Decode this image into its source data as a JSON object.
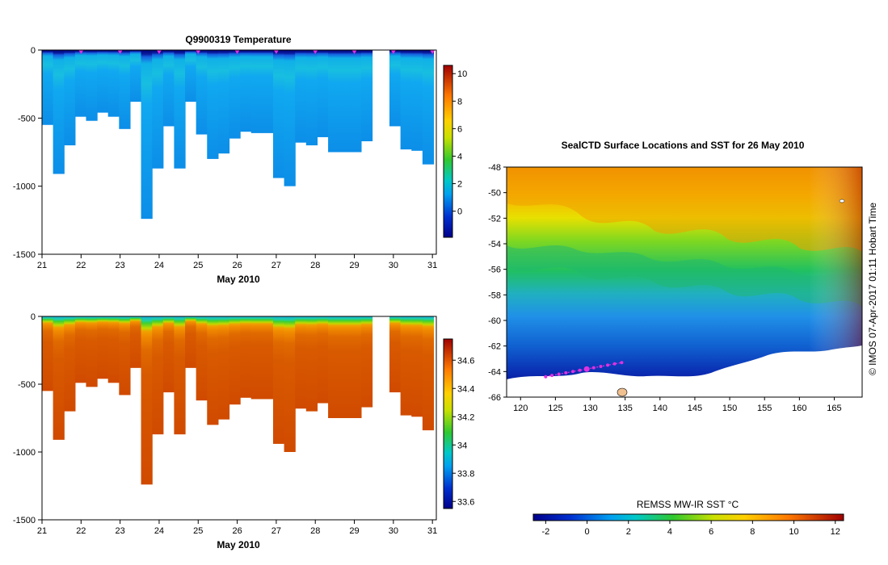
{
  "chart_data": [
    {
      "type": "heatmap",
      "title": "Q9900319  Temperature",
      "xlabel": "May 2010",
      "ylabel": "",
      "x_ticks": [
        "21",
        "22",
        "23",
        "24",
        "25",
        "26",
        "27",
        "28",
        "29",
        "30",
        "31"
      ],
      "xlim": [
        21,
        31.1
      ],
      "y_ticks": [
        "0",
        "-500",
        "-1000",
        "-1500"
      ],
      "ylim": [
        -1500,
        0
      ],
      "colorbar_ticks": [
        "10",
        "8",
        "6",
        "4",
        "2",
        "0"
      ],
      "colorbar_range": [
        -1.9,
        10.6
      ],
      "surface_profile_days": [
        22.0,
        23.0,
        24.0,
        25.0,
        26.0,
        27.0,
        28.0,
        29.0,
        30.0,
        31.0
      ],
      "profile_depths_m": [
        550,
        910,
        700,
        490,
        520,
        460,
        490,
        580,
        380,
        1240,
        870,
        560,
        870,
        380,
        620,
        800,
        760,
        650,
        600,
        610,
        610,
        940,
        1000,
        680,
        700,
        640,
        750,
        750,
        750,
        670,
        560,
        730,
        740,
        840
      ]
    },
    {
      "type": "heatmap",
      "title": "",
      "xlabel": "May 2010",
      "ylabel": "",
      "x_ticks": [
        "21",
        "22",
        "23",
        "24",
        "25",
        "26",
        "27",
        "28",
        "29",
        "30",
        "31"
      ],
      "xlim": [
        21,
        31.1
      ],
      "y_ticks": [
        "0",
        "-500",
        "-1000",
        "-1500"
      ],
      "ylim": [
        -1500,
        0
      ],
      "colorbar_ticks": [
        "34.6",
        "34.4",
        "34.2",
        "34",
        "33.8",
        "33.6"
      ],
      "colorbar_range": [
        33.55,
        34.75
      ]
    },
    {
      "type": "heatmap",
      "title": "SealCTD Surface Locations and SST for 26 May 2010",
      "xlabel": "",
      "ylabel": "",
      "x_ticks": [
        "120",
        "125",
        "130",
        "135",
        "140",
        "145",
        "150",
        "155",
        "160",
        "165"
      ],
      "xlim": [
        118,
        169
      ],
      "y_ticks": [
        "-48",
        "-50",
        "-52",
        "-54",
        "-56",
        "-58",
        "-60",
        "-62",
        "-64",
        "-66"
      ],
      "ylim": [
        -66,
        -48
      ],
      "colorbar_label": "REMSS MW-IR SST °C",
      "colorbar_ticks": [
        "-2",
        "0",
        "2",
        "4",
        "6",
        "8",
        "10",
        "12"
      ],
      "colorbar_range": [
        -2.6,
        12.4
      ],
      "track_lon": [
        123.6,
        124.5,
        125.5,
        126.5,
        127.5,
        128.5,
        129.5,
        130.5,
        131.5,
        132.5,
        133.5,
        134.5
      ],
      "track_lat": [
        -64.4,
        -64.3,
        -64.2,
        -64.1,
        -64.0,
        -63.9,
        -63.8,
        -63.7,
        -63.6,
        -63.5,
        -63.4,
        -63.3
      ],
      "annotation": "©  IMOS 07-Apr-2017 01:11 Hobart Time"
    }
  ],
  "colors": {
    "marker": "#e030e0",
    "land_ice": "#ffffff",
    "axis": "#000000"
  }
}
